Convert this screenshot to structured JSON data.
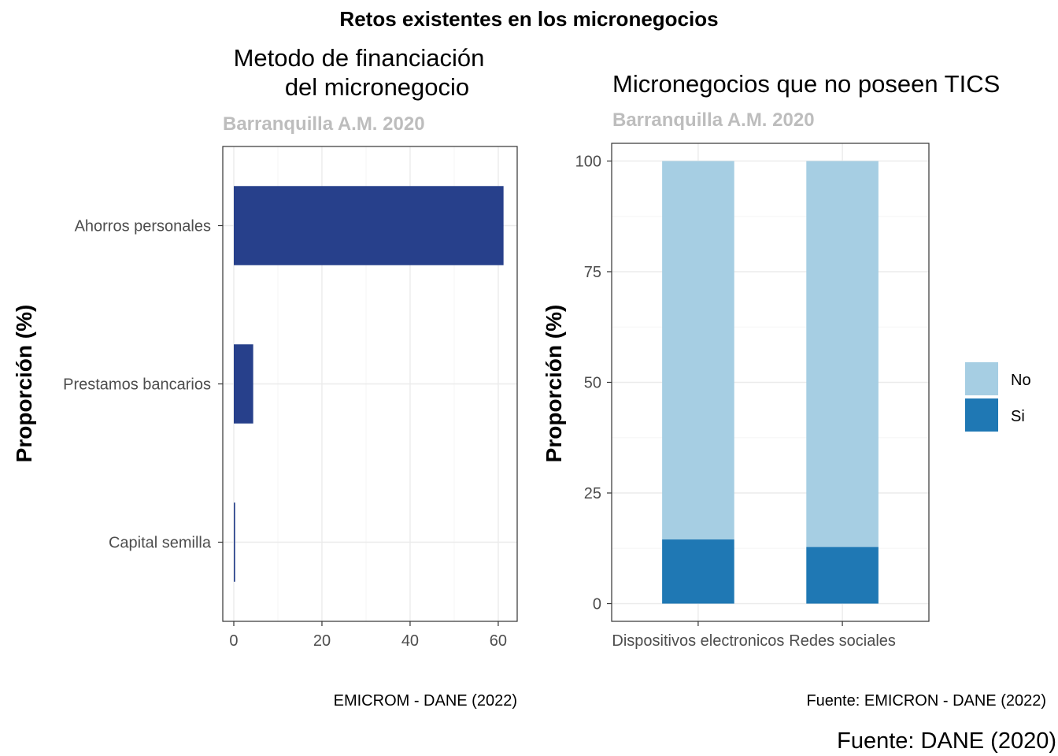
{
  "main_title": "Retos existentes en los micronegocios",
  "main_caption": "Fuente: DANE (2020)",
  "chart_data": [
    {
      "type": "bar",
      "orientation": "horizontal",
      "title_line1": "Metodo de financiación",
      "title_line2": "del micronegocio",
      "subtitle": "Barranquilla A.M. 2020",
      "xlabel": "",
      "ylabel": "Proporción (%)",
      "categories": [
        "Ahorros personales",
        "Prestamos bancarios",
        "Capital semilla"
      ],
      "values": [
        61.2,
        4.4,
        0.3
      ],
      "xlim": [
        -2.5,
        64.3
      ],
      "xticks": [
        0,
        20,
        40,
        60
      ],
      "bar_color": "#27408b",
      "grid": true,
      "caption": "EMICROM - DANE (2022)"
    },
    {
      "type": "bar",
      "stacked": true,
      "title": "Micronegocios que no poseen TICS",
      "subtitle": "Barranquilla A.M. 2020",
      "xlabel": "",
      "ylabel": "Proporción (%)",
      "categories": [
        "Dispositivos electronicos",
        "Redes sociales"
      ],
      "series": [
        {
          "name": "Si",
          "color": "#1f78b4",
          "values": [
            14.5,
            12.8
          ]
        },
        {
          "name": "No",
          "color": "#a6cee3",
          "values": [
            85.5,
            87.2
          ]
        }
      ],
      "ylim": [
        -4,
        104
      ],
      "yticks": [
        0,
        25,
        50,
        75,
        100
      ],
      "legend_position": "right",
      "legend_order": [
        "No",
        "Si"
      ],
      "grid": true,
      "caption": "Fuente: EMICRON - DANE (2022)"
    }
  ]
}
